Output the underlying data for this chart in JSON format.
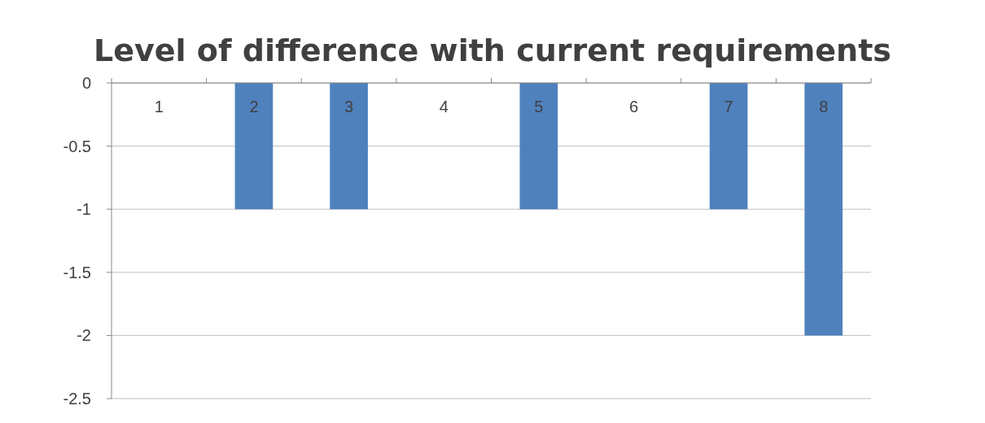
{
  "chart_data": {
    "type": "bar",
    "title": "Level of difference with current requirements",
    "categories": [
      "1",
      "2",
      "3",
      "4",
      "5",
      "6",
      "7",
      "8"
    ],
    "values": [
      0,
      -1,
      -1,
      0,
      -1,
      0,
      -1,
      -2
    ],
    "color": "#4f81bd",
    "ylim": [
      -2.5,
      0
    ],
    "yticks": [
      0,
      -0.5,
      -1,
      -1.5,
      -2,
      -2.5
    ],
    "grid": "y"
  }
}
